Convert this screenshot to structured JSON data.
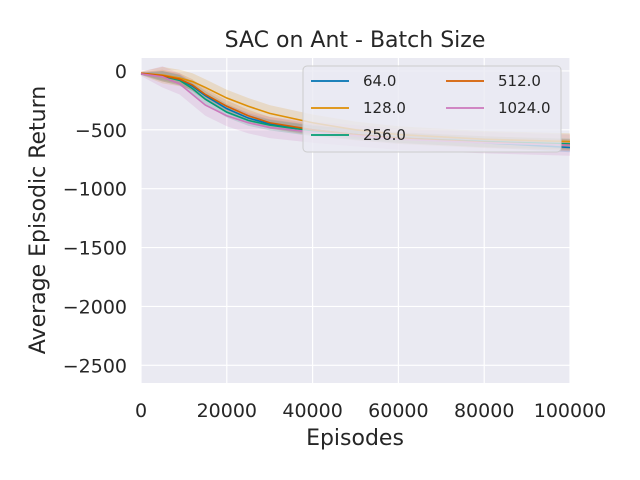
{
  "chart_data": {
    "type": "line",
    "title": "SAC on Ant - Batch Size",
    "xlabel": "Episodes",
    "ylabel": "Average Episodic Return",
    "xlim": [
      0,
      100000
    ],
    "ylim": [
      -2650,
      110
    ],
    "xticks": [
      0,
      20000,
      40000,
      60000,
      80000,
      100000
    ],
    "xtick_labels": [
      "0",
      "20000",
      "40000",
      "60000",
      "80000",
      "100000"
    ],
    "yticks": [
      0,
      -500,
      -1000,
      -1500,
      -2000,
      -2500
    ],
    "ytick_labels": [
      "0",
      "−500",
      "−1000",
      "−1500",
      "−2000",
      "−2500"
    ],
    "grid": true,
    "legend_position": "top-right",
    "series": [
      {
        "name": "64.0",
        "color": "#0173b2",
        "x": [
          0,
          5000,
          9000,
          12000,
          15000,
          20000,
          25000,
          30000,
          40000,
          50000,
          60000,
          80000,
          100000
        ],
        "y": [
          -20,
          -40,
          -70,
          -130,
          -210,
          -320,
          -400,
          -450,
          -500,
          -540,
          -570,
          -610,
          -650
        ],
        "band_half_width": 40
      },
      {
        "name": "128.0",
        "color": "#de8f05",
        "x": [
          0,
          5000,
          9000,
          12000,
          15000,
          20000,
          25000,
          30000,
          40000,
          50000,
          60000,
          80000,
          100000
        ],
        "y": [
          -20,
          -35,
          -60,
          -90,
          -140,
          -230,
          -300,
          -360,
          -440,
          -500,
          -540,
          -580,
          -600
        ],
        "band_half_width": 70
      },
      {
        "name": "256.0",
        "color": "#029e73",
        "x": [
          0,
          5000,
          9000,
          12000,
          15000,
          20000,
          25000,
          30000,
          40000,
          50000,
          60000,
          80000,
          100000
        ],
        "y": [
          -25,
          -45,
          -80,
          -150,
          -240,
          -350,
          -420,
          -460,
          -510,
          -540,
          -570,
          -600,
          -620
        ],
        "band_half_width": 45
      },
      {
        "name": "512.0",
        "color": "#d55e00",
        "x": [
          0,
          5000,
          9000,
          12000,
          15000,
          20000,
          25000,
          30000,
          40000,
          50000,
          60000,
          80000,
          100000
        ],
        "y": [
          -20,
          -40,
          -70,
          -120,
          -200,
          -300,
          -380,
          -440,
          -500,
          -540,
          -570,
          -605,
          -630
        ],
        "band_half_width": 50
      },
      {
        "name": "1024.0",
        "color": "#cc78bc",
        "x": [
          0,
          5000,
          9000,
          12000,
          15000,
          20000,
          25000,
          30000,
          40000,
          50000,
          60000,
          80000,
          100000
        ],
        "y": [
          -25,
          -50,
          -110,
          -200,
          -290,
          -380,
          -440,
          -480,
          -520,
          -550,
          -580,
          -610,
          -630
        ],
        "band_half_width": 90
      }
    ]
  }
}
